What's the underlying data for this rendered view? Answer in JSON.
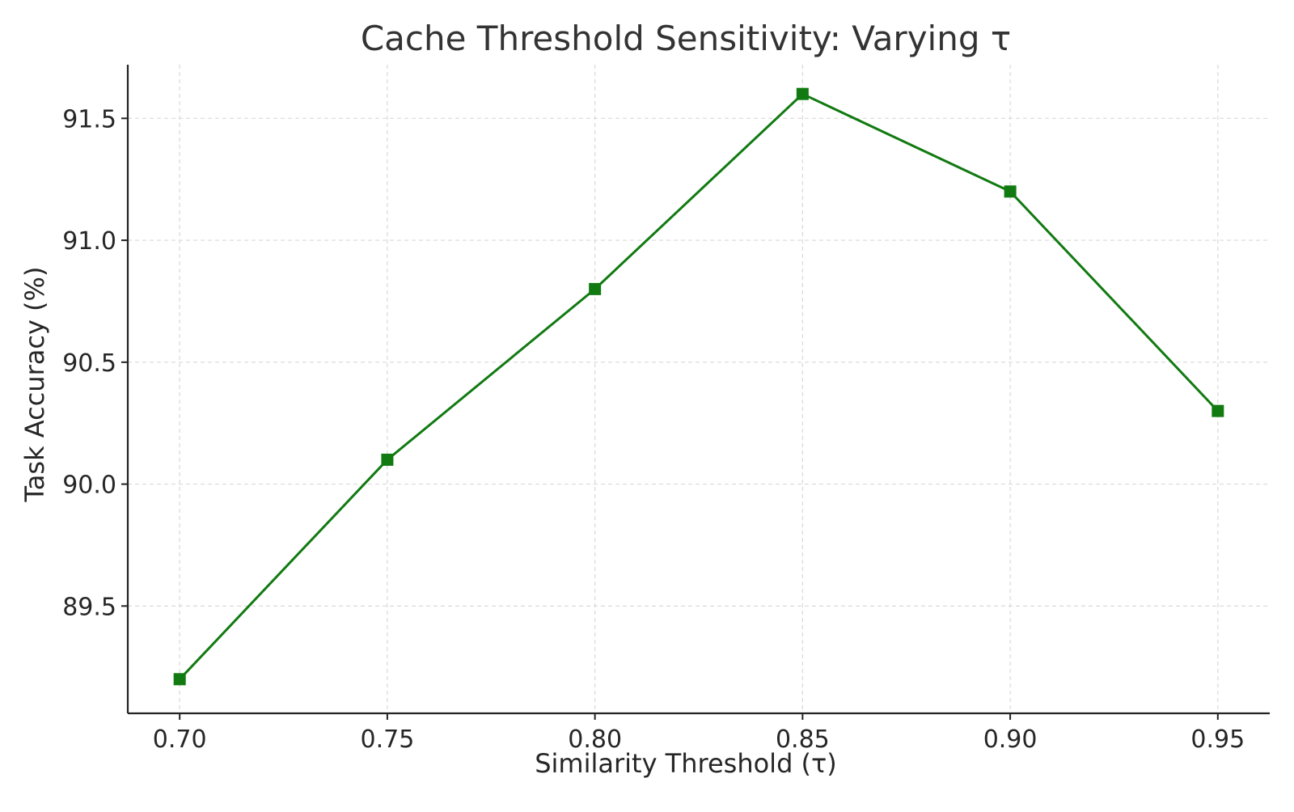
{
  "chart_data": {
    "type": "line",
    "title": "Cache Threshold Sensitivity: Varying τ",
    "xlabel": "Similarity Threshold (τ)",
    "ylabel": "Task Accuracy (%)",
    "x": [
      0.7,
      0.75,
      0.8,
      0.85,
      0.9,
      0.95
    ],
    "xtick_labels": [
      "0.70",
      "0.75",
      "0.80",
      "0.85",
      "0.90",
      "0.95"
    ],
    "ytick_values": [
      89.5,
      90.0,
      90.5,
      91.0,
      91.5
    ],
    "ytick_labels": [
      "89.5",
      "90.0",
      "90.5",
      "91.0",
      "91.5"
    ],
    "xlim": [
      0.6875,
      0.9625
    ],
    "ylim": [
      89.06,
      91.72
    ],
    "grid": true,
    "series": [
      {
        "values": [
          89.2,
          90.1,
          90.8,
          91.6,
          91.2,
          90.3
        ],
        "color": "#117a11",
        "marker": "square"
      }
    ]
  }
}
